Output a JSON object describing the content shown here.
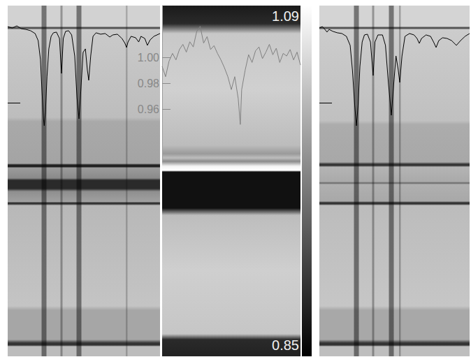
{
  "chart_data": [
    {
      "type": "line",
      "x": [
        0,
        3,
        6,
        9,
        12,
        15,
        18,
        20,
        21.5,
        22.5,
        23.5,
        24,
        24.8,
        25.8,
        27,
        28.5,
        30,
        32,
        34,
        35.3,
        36.5,
        38,
        40,
        42,
        44,
        45.5,
        46.8,
        48,
        49.5,
        51,
        52.3,
        53.2,
        54.5,
        56,
        58,
        61,
        64,
        67,
        69,
        72,
        75,
        77,
        78,
        79,
        81,
        84,
        86,
        87.5,
        90,
        91.7,
        93.5,
        96,
        100
      ],
      "values": [
        0.951,
        0.941,
        0.956,
        0.936,
        0.931,
        0.922,
        0.902,
        0.852,
        0.718,
        0.495,
        0.297,
        0.248,
        0.347,
        0.595,
        0.793,
        0.882,
        0.907,
        0.912,
        0.867,
        0.619,
        0.867,
        0.917,
        0.922,
        0.892,
        0.743,
        0.446,
        0.297,
        0.495,
        0.768,
        0.793,
        0.644,
        0.57,
        0.743,
        0.882,
        0.907,
        0.897,
        0.902,
        0.877,
        0.892,
        0.897,
        0.867,
        0.832,
        0.803,
        0.842,
        0.882,
        0.872,
        0.842,
        0.882,
        0.867,
        0.818,
        0.857,
        0.882,
        0.902
      ],
      "color": "#000000",
      "xlim": [
        0,
        100
      ],
      "ylim": [
        0,
        1.1
      ],
      "tick_labels": false,
      "grid": false
    },
    {
      "type": "line",
      "x": [
        0,
        2.5,
        5,
        7.5,
        10,
        12.5,
        15,
        17.5,
        20,
        22.5,
        25,
        27.5,
        30,
        32.5,
        35,
        37.5,
        40,
        42.5,
        45,
        47.5,
        50,
        52.5,
        55,
        56.5,
        57.5,
        60,
        62.5,
        65,
        67.5,
        70,
        72.5,
        75,
        77.5,
        80,
        82.5,
        85,
        87.5,
        90,
        92.5,
        95,
        97.5,
        100
      ],
      "values": [
        0.993,
        0.985,
        0.997,
        1.003,
        0.998,
        1.006,
        1.01,
        1.004,
        1.012,
        1.008,
        1.02,
        1.024,
        1.011,
        1.016,
        1.006,
        1.009,
        1.003,
        0.998,
        0.992,
        0.985,
        0.975,
        0.985,
        0.968,
        0.948,
        0.975,
        0.99,
        1.002,
        0.996,
        1.005,
        1.008,
        0.999,
        1.004,
        1.01,
        1.002,
        1.007,
        0.996,
        1.003,
        1.001,
        1.006,
        0.998,
        1.004,
        0.994
      ],
      "color": "#808080",
      "xlim": [
        0,
        100
      ],
      "ylim": [
        0.92,
        1.04
      ],
      "yticks": [
        0.96,
        0.98,
        {
          "value": 1,
          "label": "1.00"
        }
      ],
      "tick_labels": "y",
      "grid": false,
      "colorbar": {
        "range": [
          0.85,
          1.09
        ],
        "ticks": [
          0.85,
          1.09
        ]
      }
    },
    {
      "type": "line",
      "x": [
        0,
        2,
        4,
        5.1,
        6.5,
        9,
        12,
        15,
        18,
        20.5,
        22,
        23.5,
        24.7,
        25.8,
        27,
        28.5,
        30,
        32,
        34,
        35.8,
        37,
        39,
        42,
        44,
        46,
        47.9,
        49.5,
        51,
        52.5,
        53.5,
        55,
        57,
        60,
        63,
        65,
        66.5,
        68,
        71,
        74,
        76,
        77.7,
        79.5,
        82,
        85,
        88,
        91.2,
        94,
        97,
        100
      ],
      "values": [
        0.941,
        0.951,
        0.927,
        0.912,
        0.931,
        0.917,
        0.907,
        0.902,
        0.882,
        0.818,
        0.644,
        0.396,
        0.248,
        0.396,
        0.669,
        0.842,
        0.892,
        0.897,
        0.842,
        0.604,
        0.842,
        0.892,
        0.892,
        0.818,
        0.545,
        0.322,
        0.545,
        0.743,
        0.644,
        0.555,
        0.743,
        0.882,
        0.902,
        0.892,
        0.867,
        0.832,
        0.867,
        0.892,
        0.882,
        0.842,
        0.803,
        0.852,
        0.872,
        0.867,
        0.852,
        0.818,
        0.852,
        0.882,
        0.902
      ],
      "color": "#000000",
      "xlim": [
        0,
        100
      ],
      "ylim": [
        0,
        1.1
      ],
      "tick_labels": false,
      "grid": false
    }
  ]
}
